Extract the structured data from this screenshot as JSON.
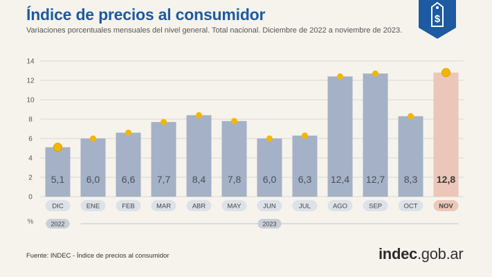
{
  "header": {
    "title": "Índice de precios al consumidor",
    "subtitle": "Variaciones porcentuales mensuales del nivel general. Total nacional. Diciembre de 2022 a noviembre de 2023."
  },
  "footer": {
    "source": "Fuente: INDEC - Índice de precios al consumidor",
    "logo_main": "indec",
    "logo_domain": ".gob.ar"
  },
  "badge": {
    "icon": "price-tag-dollar-icon",
    "symbol": "$"
  },
  "colors": {
    "title": "#1d5aa2",
    "bar": "#a4b1c6",
    "bar_highlight": "#eac7b8",
    "dot": "#f2b705",
    "tick_pill": "#dde1e8",
    "tick_pill_highlight": "#ecc8ba"
  },
  "chart_data": {
    "type": "bar",
    "categories": [
      "DIC",
      "ENE",
      "FEB",
      "MAR",
      "ABR",
      "MAY",
      "JUN",
      "JUL",
      "AGO",
      "SEP",
      "OCT",
      "NOV"
    ],
    "values": [
      5.1,
      6.0,
      6.6,
      7.7,
      8.4,
      7.8,
      6.0,
      6.3,
      12.4,
      12.7,
      8.3,
      12.8
    ],
    "labels": [
      "5,1",
      "6,0",
      "6,6",
      "7,7",
      "8,4",
      "7,8",
      "6,0",
      "6,3",
      "12,4",
      "12,7",
      "8,3",
      "12,8"
    ],
    "highlight_index": 11,
    "unit_label": "%",
    "ylim": [
      0,
      14
    ],
    "yticks": [
      "0",
      "2",
      "4",
      "6",
      "8",
      "10",
      "12",
      "14"
    ],
    "years": [
      {
        "label": "2022",
        "from": 0,
        "to": 0
      },
      {
        "label": "2023",
        "from": 1,
        "to": 11
      }
    ],
    "grid": true
  }
}
